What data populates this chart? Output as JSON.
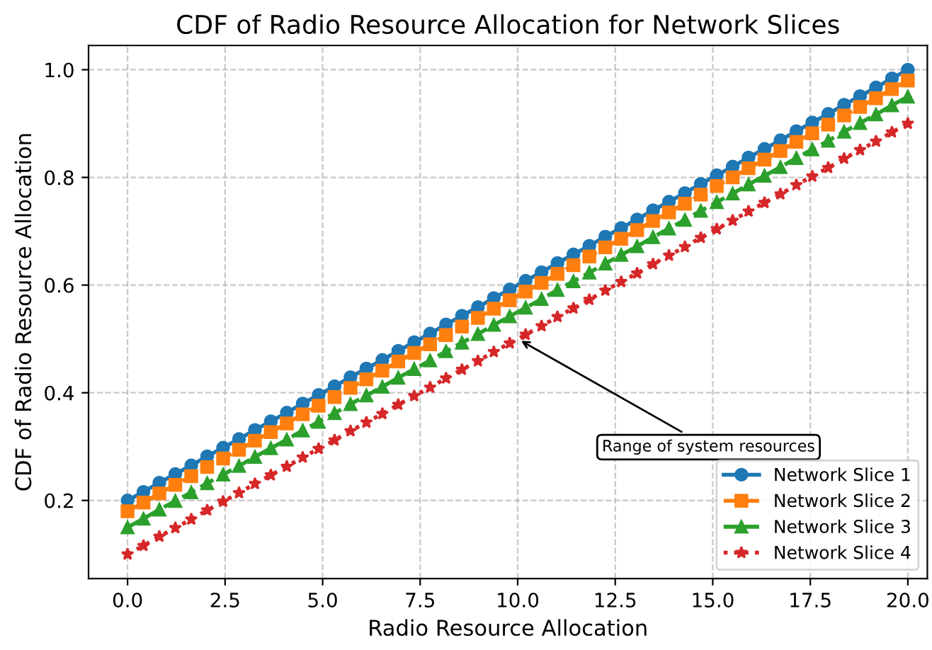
{
  "chart_data": {
    "type": "line",
    "title": "CDF of Radio Resource Allocation for Network Slices",
    "xlabel": "Radio Resource Allocation",
    "ylabel": "CDF of Radio Resource Allocation",
    "x": [
      0,
      0.408,
      0.816,
      1.224,
      1.633,
      2.041,
      2.449,
      2.857,
      3.265,
      3.673,
      4.082,
      4.49,
      4.898,
      5.306,
      5.714,
      6.122,
      6.531,
      6.939,
      7.347,
      7.755,
      8.163,
      8.571,
      8.98,
      9.388,
      9.796,
      10.204,
      10.612,
      11.02,
      11.429,
      11.837,
      12.245,
      12.653,
      13.061,
      13.469,
      13.878,
      14.286,
      14.694,
      15.102,
      15.51,
      15.918,
      16.327,
      16.735,
      17.143,
      17.551,
      17.959,
      18.367,
      18.776,
      19.184,
      19.592,
      20
    ],
    "series": [
      {
        "name": "Network Slice 1",
        "color": "#1f77b4",
        "marker": "circle",
        "line_style": "solid",
        "values": [
          0.2,
          0.216,
          0.233,
          0.249,
          0.265,
          0.282,
          0.298,
          0.314,
          0.331,
          0.347,
          0.363,
          0.38,
          0.396,
          0.412,
          0.429,
          0.445,
          0.461,
          0.478,
          0.494,
          0.51,
          0.527,
          0.543,
          0.559,
          0.576,
          0.592,
          0.608,
          0.624,
          0.641,
          0.657,
          0.673,
          0.69,
          0.706,
          0.722,
          0.739,
          0.755,
          0.771,
          0.788,
          0.804,
          0.82,
          0.837,
          0.853,
          0.869,
          0.886,
          0.902,
          0.918,
          0.935,
          0.951,
          0.967,
          0.984,
          1.0
        ]
      },
      {
        "name": "Network Slice 2",
        "color": "#ff7f0e",
        "marker": "square",
        "line_style": "dashed",
        "values": [
          0.18,
          0.196,
          0.213,
          0.229,
          0.245,
          0.262,
          0.278,
          0.294,
          0.311,
          0.327,
          0.343,
          0.36,
          0.376,
          0.392,
          0.409,
          0.425,
          0.441,
          0.458,
          0.474,
          0.49,
          0.507,
          0.523,
          0.539,
          0.556,
          0.572,
          0.588,
          0.604,
          0.621,
          0.637,
          0.653,
          0.67,
          0.686,
          0.702,
          0.719,
          0.735,
          0.751,
          0.768,
          0.784,
          0.8,
          0.817,
          0.833,
          0.849,
          0.866,
          0.882,
          0.898,
          0.915,
          0.931,
          0.947,
          0.964,
          0.98
        ]
      },
      {
        "name": "Network Slice 3",
        "color": "#2ca02c",
        "marker": "triangle",
        "line_style": "dashed",
        "values": [
          0.15,
          0.166,
          0.183,
          0.199,
          0.215,
          0.232,
          0.248,
          0.264,
          0.281,
          0.297,
          0.313,
          0.33,
          0.346,
          0.362,
          0.379,
          0.395,
          0.411,
          0.428,
          0.444,
          0.46,
          0.477,
          0.493,
          0.509,
          0.526,
          0.542,
          0.558,
          0.574,
          0.591,
          0.607,
          0.623,
          0.64,
          0.656,
          0.672,
          0.689,
          0.705,
          0.721,
          0.738,
          0.754,
          0.77,
          0.787,
          0.803,
          0.819,
          0.836,
          0.852,
          0.868,
          0.885,
          0.901,
          0.917,
          0.934,
          0.95
        ]
      },
      {
        "name": "Network Slice 4",
        "color": "#d62728",
        "marker": "star",
        "line_style": "dotted",
        "values": [
          0.1,
          0.116,
          0.133,
          0.149,
          0.165,
          0.182,
          0.198,
          0.214,
          0.231,
          0.247,
          0.263,
          0.28,
          0.296,
          0.312,
          0.329,
          0.345,
          0.361,
          0.378,
          0.394,
          0.41,
          0.427,
          0.443,
          0.459,
          0.476,
          0.492,
          0.508,
          0.524,
          0.541,
          0.557,
          0.573,
          0.59,
          0.606,
          0.622,
          0.639,
          0.655,
          0.671,
          0.688,
          0.704,
          0.72,
          0.737,
          0.753,
          0.769,
          0.786,
          0.802,
          0.818,
          0.835,
          0.851,
          0.867,
          0.884,
          0.9
        ]
      }
    ],
    "xlim": [
      -1,
      20.5
    ],
    "ylim": [
      0.055,
      1.045
    ],
    "xticks": [
      {
        "value": 0,
        "label": "0.0"
      },
      2.5,
      {
        "value": 5,
        "label": "5.0"
      },
      7.5,
      {
        "value": 10,
        "label": "10.0"
      },
      12.5,
      {
        "value": 15,
        "label": "15.0"
      },
      17.5,
      {
        "value": 20,
        "label": "20.0"
      }
    ],
    "yticks": [
      0.2,
      0.4,
      0.6,
      0.8,
      {
        "value": 1,
        "label": "1.0"
      }
    ],
    "annotations": [
      {
        "text": "Range of system resources",
        "x": 10,
        "y": 0.5
      }
    ],
    "grid": true,
    "legend": "bottom right"
  }
}
